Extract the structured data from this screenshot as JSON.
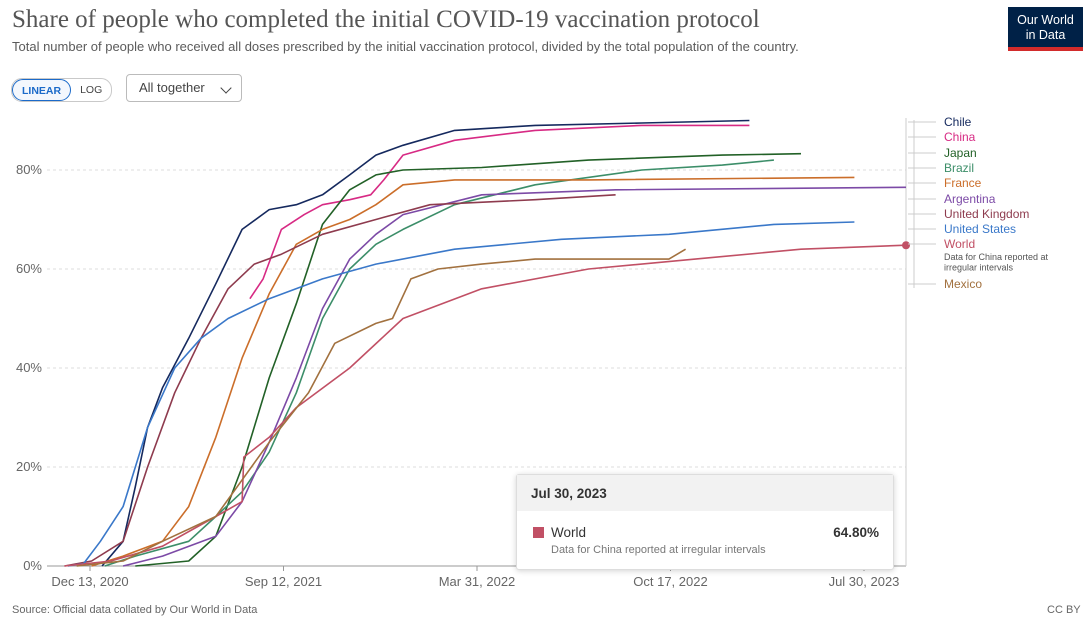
{
  "header": {
    "title": "Share of people who completed the initial COVID-19 vaccination protocol",
    "subtitle": "Total number of people who received all doses prescribed by the initial vaccination protocol, divided by the total population of the country.",
    "logo_line1": "Our World",
    "logo_line2": "in Data"
  },
  "controls": {
    "linear_label": "LINEAR",
    "log_label": "LOG",
    "selected_scale": "LINEAR",
    "dropdown_label": "All together"
  },
  "footer": {
    "source": "Source: Official data collated by Our World in Data",
    "license": "CC BY"
  },
  "tooltip": {
    "date": "Jul 30, 2023",
    "entity": "World",
    "value": "64.80%",
    "note": "Data for China reported at irregular intervals",
    "color": "#c15065"
  },
  "chart_data": {
    "type": "line",
    "title": "Share of people who completed the initial COVID-19 vaccination protocol",
    "y_ticks": [
      "0%",
      "20%",
      "40%",
      "60%",
      "80%"
    ],
    "ylim": [
      0,
      90
    ],
    "x_ticks": [
      "Dec 13, 2020",
      "Sep 12, 2021",
      "Mar 31, 2022",
      "Oct 17, 2022",
      "Jul 30, 2023"
    ],
    "xlim": [
      "2020-11-20",
      "2023-07-30"
    ],
    "legend_placement": "right",
    "series": [
      {
        "name": "Chile",
        "color": "#15295e",
        "points": [
          [
            "2021-01-22",
            0
          ],
          [
            "2021-02-15",
            5
          ],
          [
            "2021-03-01",
            16
          ],
          [
            "2021-03-15",
            28
          ],
          [
            "2021-04-01",
            36
          ],
          [
            "2021-05-01",
            46
          ],
          [
            "2021-06-01",
            57
          ],
          [
            "2021-07-01",
            68
          ],
          [
            "2021-08-01",
            72
          ],
          [
            "2021-09-01",
            73
          ],
          [
            "2021-10-01",
            75
          ],
          [
            "2021-11-01",
            79
          ],
          [
            "2021-12-01",
            83
          ],
          [
            "2022-01-01",
            85
          ],
          [
            "2022-03-01",
            88
          ],
          [
            "2022-06-01",
            89
          ],
          [
            "2022-10-01",
            89.5
          ],
          [
            "2023-02-01",
            90
          ]
        ]
      },
      {
        "name": "China",
        "color": "#d72a84",
        "points": [
          [
            "2021-07-10",
            54
          ],
          [
            "2021-07-25",
            58
          ],
          [
            "2021-08-15",
            68
          ],
          [
            "2021-09-10",
            71
          ],
          [
            "2021-10-01",
            73
          ],
          [
            "2021-11-01",
            74
          ],
          [
            "2021-11-25",
            75
          ],
          [
            "2021-12-10",
            78
          ],
          [
            "2022-01-01",
            83
          ],
          [
            "2022-03-01",
            86
          ],
          [
            "2022-06-01",
            88
          ],
          [
            "2022-10-01",
            89
          ],
          [
            "2023-02-01",
            89
          ]
        ]
      },
      {
        "name": "Japan",
        "color": "#226127",
        "points": [
          [
            "2021-03-01",
            0
          ],
          [
            "2021-05-01",
            1
          ],
          [
            "2021-06-01",
            6
          ],
          [
            "2021-07-01",
            20
          ],
          [
            "2021-08-01",
            38
          ],
          [
            "2021-09-01",
            53
          ],
          [
            "2021-10-01",
            69
          ],
          [
            "2021-11-01",
            76
          ],
          [
            "2021-12-01",
            79
          ],
          [
            "2022-01-01",
            80
          ],
          [
            "2022-04-01",
            80.5
          ],
          [
            "2022-08-01",
            82
          ],
          [
            "2023-01-01",
            83
          ],
          [
            "2023-04-01",
            83.3
          ]
        ]
      },
      {
        "name": "Brazil",
        "color": "#3c8e69",
        "points": [
          [
            "2021-01-25",
            0
          ],
          [
            "2021-03-01",
            2
          ],
          [
            "2021-05-01",
            5
          ],
          [
            "2021-06-01",
            10
          ],
          [
            "2021-07-01",
            15
          ],
          [
            "2021-08-01",
            23
          ],
          [
            "2021-09-01",
            35
          ],
          [
            "2021-10-01",
            50
          ],
          [
            "2021-11-01",
            60
          ],
          [
            "2021-12-01",
            65
          ],
          [
            "2022-01-01",
            68
          ],
          [
            "2022-03-01",
            73
          ],
          [
            "2022-06-01",
            77
          ],
          [
            "2022-10-01",
            80
          ],
          [
            "2023-01-01",
            81
          ],
          [
            "2023-03-01",
            82
          ]
        ]
      },
      {
        "name": "France",
        "color": "#cb6e2a",
        "points": [
          [
            "2021-01-10",
            0
          ],
          [
            "2021-02-15",
            2
          ],
          [
            "2021-04-01",
            5
          ],
          [
            "2021-05-01",
            12
          ],
          [
            "2021-06-01",
            26
          ],
          [
            "2021-07-01",
            42
          ],
          [
            "2021-08-01",
            55
          ],
          [
            "2021-09-01",
            65
          ],
          [
            "2021-10-01",
            68
          ],
          [
            "2021-11-01",
            70
          ],
          [
            "2021-12-01",
            73
          ],
          [
            "2022-01-01",
            77
          ],
          [
            "2022-03-01",
            78
          ],
          [
            "2022-08-01",
            78
          ],
          [
            "2023-06-01",
            78.5
          ]
        ]
      },
      {
        "name": "Argentina",
        "color": "#7c4aa6",
        "points": [
          [
            "2021-02-15",
            0
          ],
          [
            "2021-04-01",
            2
          ],
          [
            "2021-06-01",
            6
          ],
          [
            "2021-07-01",
            13
          ],
          [
            "2021-08-01",
            25
          ],
          [
            "2021-09-01",
            38
          ],
          [
            "2021-10-01",
            52
          ],
          [
            "2021-11-01",
            62
          ],
          [
            "2021-12-01",
            67
          ],
          [
            "2022-01-01",
            71
          ],
          [
            "2022-04-01",
            75
          ],
          [
            "2022-09-01",
            76
          ],
          [
            "2023-07-30",
            76.5
          ]
        ]
      },
      {
        "name": "United Kingdom",
        "color": "#8e3b4e",
        "points": [
          [
            "2020-12-10",
            0
          ],
          [
            "2021-01-10",
            1
          ],
          [
            "2021-02-15",
            5
          ],
          [
            "2021-03-15",
            20
          ],
          [
            "2021-04-15",
            35
          ],
          [
            "2021-05-15",
            46
          ],
          [
            "2021-06-15",
            56
          ],
          [
            "2021-07-15",
            61
          ],
          [
            "2021-08-15",
            63
          ],
          [
            "2021-10-01",
            67
          ],
          [
            "2021-12-01",
            70
          ],
          [
            "2022-02-01",
            73
          ],
          [
            "2022-06-01",
            74
          ],
          [
            "2022-09-01",
            75
          ]
        ]
      },
      {
        "name": "United States",
        "color": "#3a78c9",
        "points": [
          [
            "2020-12-14",
            0
          ],
          [
            "2021-01-01",
            0.5
          ],
          [
            "2021-01-20",
            5
          ],
          [
            "2021-02-15",
            12
          ],
          [
            "2021-03-15",
            28
          ],
          [
            "2021-04-15",
            40
          ],
          [
            "2021-05-15",
            46
          ],
          [
            "2021-06-15",
            50
          ],
          [
            "2021-08-01",
            54
          ],
          [
            "2021-10-01",
            58
          ],
          [
            "2021-12-01",
            61
          ],
          [
            "2022-03-01",
            64
          ],
          [
            "2022-07-01",
            66
          ],
          [
            "2022-11-01",
            67
          ],
          [
            "2023-03-01",
            69
          ],
          [
            "2023-06-01",
            69.5
          ]
        ]
      },
      {
        "name": "World",
        "color": "#c15065",
        "note": "Data for China reported at irregular intervals",
        "points": [
          [
            "2020-12-10",
            0
          ],
          [
            "2021-02-01",
            1
          ],
          [
            "2021-04-01",
            4
          ],
          [
            "2021-06-01",
            10
          ],
          [
            "2021-07-01",
            13
          ],
          [
            "2021-07-03",
            22
          ],
          [
            "2021-08-01",
            26
          ],
          [
            "2021-09-01",
            32
          ],
          [
            "2021-11-01",
            40
          ],
          [
            "2022-01-01",
            50
          ],
          [
            "2022-04-01",
            56
          ],
          [
            "2022-08-01",
            60
          ],
          [
            "2022-12-01",
            62
          ],
          [
            "2023-04-01",
            64
          ],
          [
            "2023-07-30",
            64.8
          ]
        ]
      },
      {
        "name": "Mexico",
        "color": "#a2713f",
        "points": [
          [
            "2020-12-24",
            0
          ],
          [
            "2021-02-15",
            1
          ],
          [
            "2021-04-01",
            5
          ],
          [
            "2021-06-01",
            10
          ],
          [
            "2021-08-01",
            25
          ],
          [
            "2021-09-15",
            35
          ],
          [
            "2021-10-15",
            45
          ],
          [
            "2021-12-01",
            49
          ],
          [
            "2021-12-20",
            50
          ],
          [
            "2022-01-10",
            58
          ],
          [
            "2022-02-10",
            60
          ],
          [
            "2022-04-01",
            61
          ],
          [
            "2022-06-01",
            62
          ],
          [
            "2022-09-01",
            62
          ],
          [
            "2022-11-01",
            62
          ],
          [
            "2022-11-20",
            64
          ]
        ]
      }
    ]
  }
}
